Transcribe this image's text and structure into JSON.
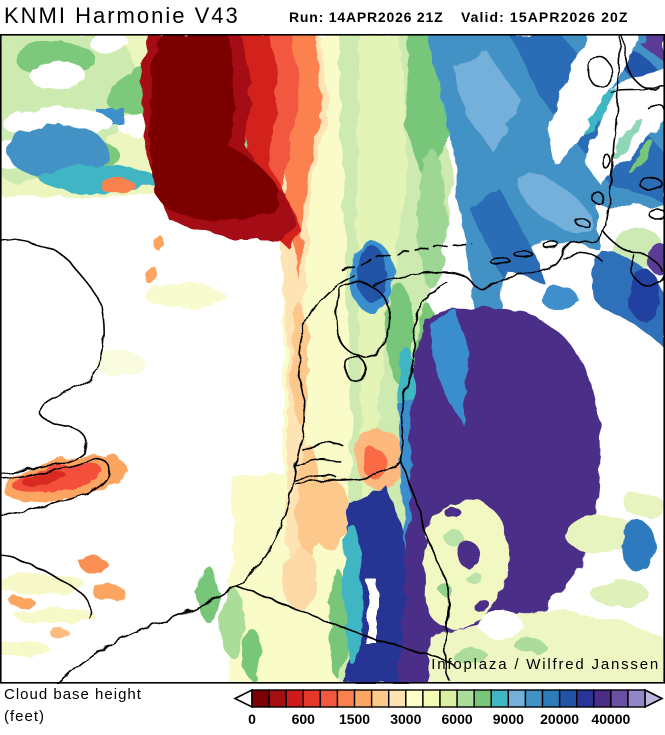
{
  "header": {
    "title": "KNMI Harmonie V43",
    "run_label": "Run: 14APR2026 21Z",
    "valid_label": "Valid: 15APR2026 20Z"
  },
  "map": {
    "attribution": "Infoplaza / Wilfred Janssen",
    "regions": [
      "very low cloud base (dark red) over central North Sea",
      "low-mid bands (orange/yellow/green) over UK, Belgium, west Netherlands",
      "high cloud base (blue) over north Germany and Denmark",
      "very high cloud base (purple) over west Germany",
      "cloud-free (white) over SE England, Channel and east Germany"
    ]
  },
  "legend": {
    "title_line1": "Cloud base height",
    "title_line2": "(feet)",
    "cells": [
      "#7c0103",
      "#a40f12",
      "#ce1a1d",
      "#e5372a",
      "#f25940",
      "#fb8150",
      "#fda763",
      "#fdc88c",
      "#fee3b4",
      "#ffffc8",
      "#f3fab4",
      "#d9f0a3",
      "#abdc9a",
      "#78c679",
      "#41b6c4",
      "#74b0da",
      "#4292c6",
      "#2c7cba",
      "#2353a4",
      "#29349b",
      "#4b2d88",
      "#6a51a3",
      "#9287c6"
    ],
    "left_arrow_color": "#ffffff",
    "right_arrow_color": "#bdb5de",
    "ticks": [
      {
        "label": "0",
        "boundary": 0
      },
      {
        "label": "600",
        "boundary": 3
      },
      {
        "label": "1500",
        "boundary": 6
      },
      {
        "label": "3000",
        "boundary": 9
      },
      {
        "label": "6000",
        "boundary": 12
      },
      {
        "label": "9000",
        "boundary": 15
      },
      {
        "label": "20000",
        "boundary": 18
      },
      {
        "label": "40000",
        "boundary": 21
      }
    ]
  }
}
